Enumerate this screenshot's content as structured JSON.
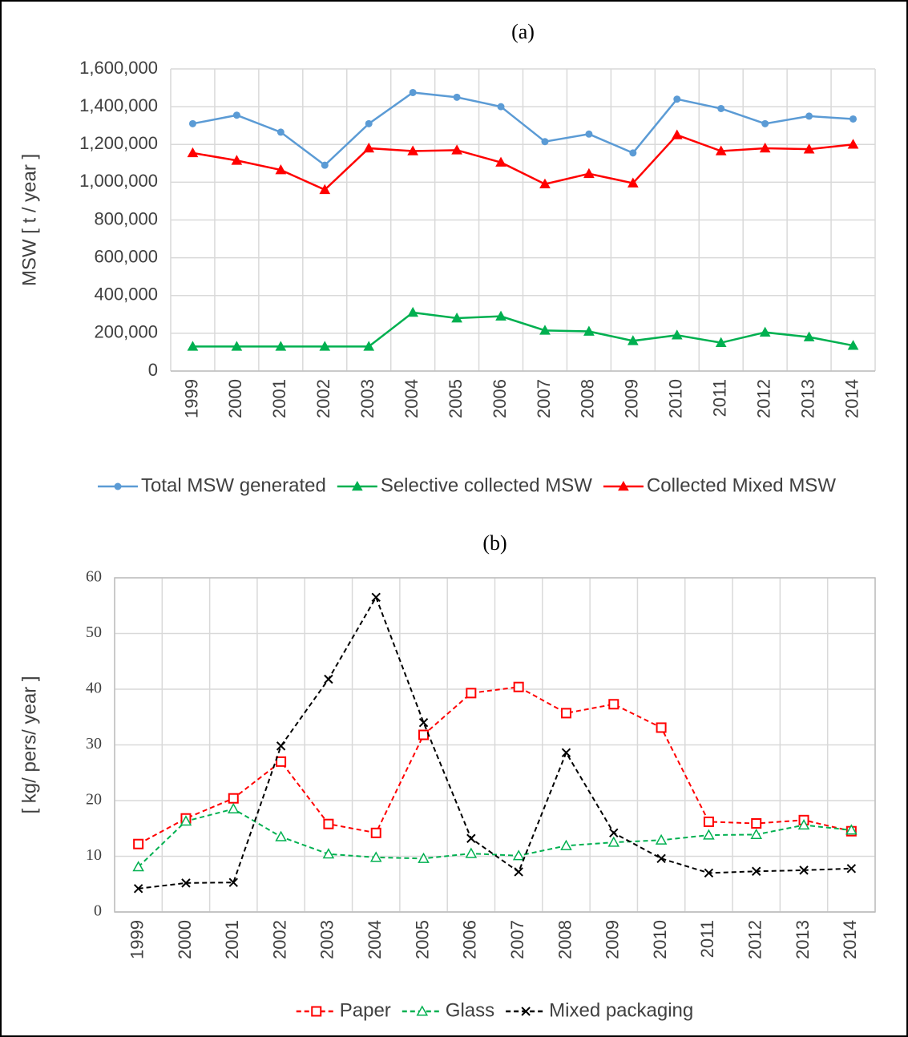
{
  "chart_data": [
    {
      "type": "line",
      "title": "(a)",
      "ylabel": "MSW [ t / year ]",
      "categories": [
        "1999",
        "2000",
        "2001",
        "2002",
        "2003",
        "2004",
        "2005",
        "2006",
        "2007",
        "2008",
        "2009",
        "2010",
        "2011",
        "2012",
        "2013",
        "2014"
      ],
      "ylim": [
        0,
        1600000
      ],
      "yticks": [
        0,
        {
          "value": 200000,
          "label": "200,000"
        },
        {
          "value": 400000,
          "label": "400,000"
        },
        {
          "value": 600000,
          "label": "600,000"
        },
        {
          "value": 800000,
          "label": "800,000"
        },
        {
          "value": 1000000,
          "label": "1,000,000"
        },
        {
          "value": 1200000,
          "label": "1,200,000"
        },
        {
          "value": 1400000,
          "label": "1,400,000"
        },
        {
          "value": 1600000,
          "label": "1,600,000"
        }
      ],
      "grid": true,
      "legend": "bottom",
      "series": [
        {
          "name": "Total MSW generated",
          "color": "#5b9bd5",
          "marker": "circle",
          "dashed": false,
          "values": [
            1310000,
            1355000,
            1265000,
            1090000,
            1310000,
            1475000,
            1450000,
            1400000,
            1215000,
            1255000,
            1155000,
            1440000,
            1390000,
            1310000,
            1350000,
            1335000
          ]
        },
        {
          "name": "Selective collected MSW",
          "color": "#00b050",
          "marker": "triangle",
          "dashed": false,
          "values": [
            130000,
            130000,
            130000,
            130000,
            130000,
            310000,
            280000,
            290000,
            215000,
            210000,
            160000,
            190000,
            150000,
            205000,
            180000,
            135000
          ]
        },
        {
          "name": "Collected Mixed MSW",
          "color": "#ff0000",
          "marker": "triangle",
          "dashed": false,
          "values": [
            1155000,
            1115000,
            1065000,
            960000,
            1180000,
            1165000,
            1170000,
            1105000,
            990000,
            1045000,
            995000,
            1250000,
            1165000,
            1180000,
            1175000,
            1200000
          ]
        }
      ]
    },
    {
      "type": "line",
      "title": "(b)",
      "ylabel": "[ kg/ pers/ year ]",
      "categories": [
        "1999",
        "2000",
        "2001",
        "2002",
        "2003",
        "2004",
        "2005",
        "2006",
        "2007",
        "2008",
        "2009",
        "2010",
        "2011",
        "2012",
        "2013",
        "2014"
      ],
      "ylim": [
        0,
        60
      ],
      "yticks": [
        0,
        10,
        20,
        30,
        40,
        50,
        60
      ],
      "grid": true,
      "legend": "bottom",
      "series": [
        {
          "name": "Paper",
          "color": "#ff0000",
          "marker": "square-open",
          "dashed": true,
          "values": [
            12.2,
            16.8,
            20.4,
            27,
            15.8,
            14.2,
            31.8,
            39.3,
            40.4,
            35.7,
            37.3,
            33.1,
            16.2,
            15.9,
            16.5,
            14.5
          ]
        },
        {
          "name": "Glass",
          "color": "#00b050",
          "marker": "triangle-open",
          "dashed": true,
          "values": [
            8.1,
            16.3,
            18.5,
            13.5,
            10.4,
            9.8,
            9.6,
            10.5,
            10.1,
            11.9,
            12.5,
            12.9,
            13.8,
            13.9,
            15.6,
            14.7
          ]
        },
        {
          "name": "Mixed packaging",
          "color": "#000000",
          "marker": "x",
          "dashed": true,
          "values": [
            4.2,
            5.2,
            5.3,
            29.8,
            41.8,
            56.5,
            34,
            13.2,
            7.2,
            28.6,
            14.2,
            9.6,
            7,
            7.3,
            7.5,
            7.8
          ]
        }
      ]
    }
  ]
}
